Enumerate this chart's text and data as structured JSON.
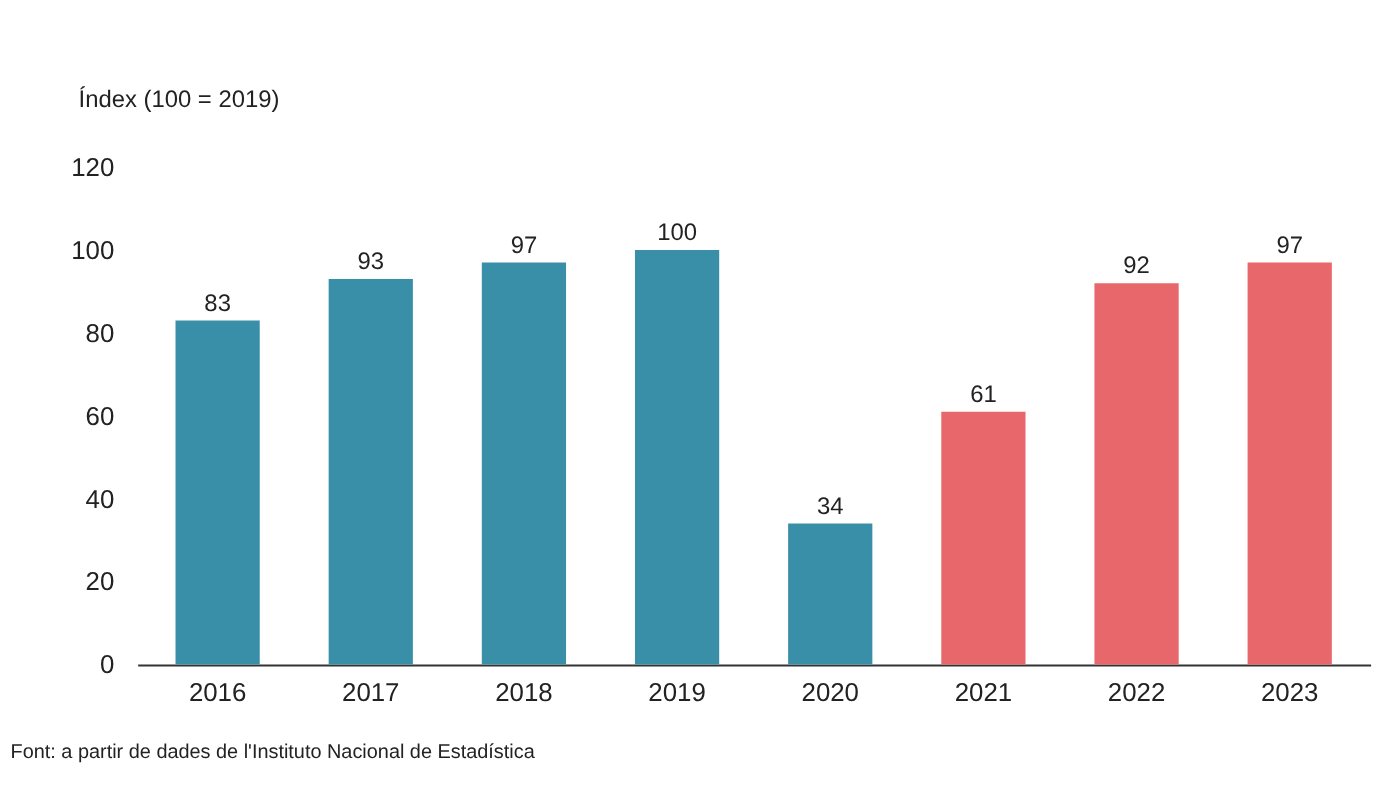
{
  "chart_data": {
    "type": "bar",
    "ylabel": "Índex (100 = 2019)",
    "categories": [
      "2016",
      "2017",
      "2018",
      "2019",
      "2020",
      "2021",
      "2022",
      "2023"
    ],
    "values": [
      83,
      93,
      97,
      100,
      34,
      61,
      92,
      97
    ],
    "colors": [
      "#3a8fa8",
      "#3a8fa8",
      "#3a8fa8",
      "#3a8fa8",
      "#3a8fa8",
      "#e8676a",
      "#e8676a",
      "#e8676a"
    ],
    "ylim": [
      0,
      120
    ],
    "yticks": [
      0,
      20,
      40,
      60,
      80,
      100,
      120
    ],
    "grid": false,
    "data_labels": true,
    "annotations": [
      "Font: a partir de dades de l'Instituto Nacional de Estadística"
    ]
  }
}
